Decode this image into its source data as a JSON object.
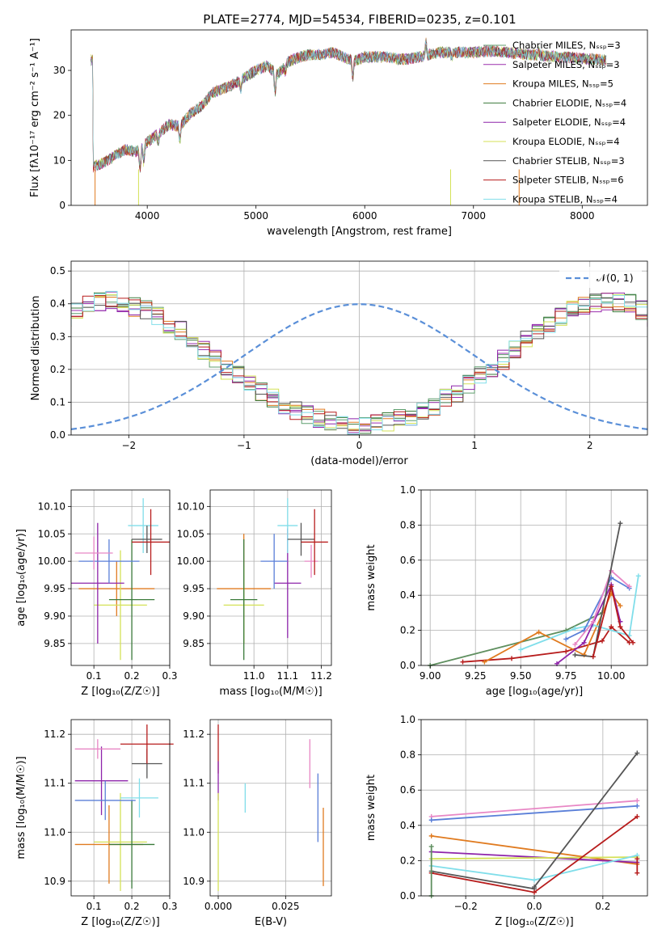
{
  "figure_title": "PLATE=2774, MJD=54534, FIBERID=0235, z=0.101",
  "series_colors": [
    "#5f9e6e",
    "#9b2fae",
    "#e07b20",
    "#3a7a3a",
    "#8e24aa",
    "#d4e157",
    "#555555",
    "#b71c1c",
    "#80deea"
  ],
  "chart_data": [
    {
      "type": "line",
      "title": "PLATE=2774, MJD=54534, FIBERID=0235, z=0.101",
      "xlabel": "wavelength [Angstrom, rest frame]",
      "ylabel": "Flux [fλ10⁻¹⁷ erg cm⁻² s⁻¹ A⁻¹]",
      "xlim": [
        3300,
        8600
      ],
      "ylim": [
        0,
        39
      ],
      "xticks": [
        4000,
        5000,
        6000,
        7000,
        8000
      ],
      "yticks": [
        0,
        10,
        20,
        30
      ],
      "grid": false,
      "legend": "right",
      "series": [
        {
          "name": "Chabrier MILES, Nₛₛₚ=3",
          "color": "#5f9e6e"
        },
        {
          "name": "Salpeter MILES, Nₛₛₚ=3",
          "color": "#9b2fae"
        },
        {
          "name": "Kroupa MILES, Nₛₛₚ=5",
          "color": "#e07b20"
        },
        {
          "name": "Chabrier ELODIE, Nₛₛₚ=4",
          "color": "#3a7a3a"
        },
        {
          "name": "Salpeter ELODIE, Nₛₛₚ=4",
          "color": "#8e24aa"
        },
        {
          "name": "Kroupa ELODIE, Nₛₛₚ=4",
          "color": "#d4e157"
        },
        {
          "name": "Chabrier STELIB, Nₛₛₚ=3",
          "color": "#555555"
        },
        {
          "name": "Salpeter STELIB, Nₛₛₚ=6",
          "color": "#b71c1c"
        },
        {
          "name": "Kroupa STELIB, Nₛₛₚ=4",
          "color": "#80deea"
        }
      ],
      "continuum": [
        [
          3500,
          8.5
        ],
        [
          3600,
          9.5
        ],
        [
          3700,
          11
        ],
        [
          3800,
          12.5
        ],
        [
          3900,
          12
        ],
        [
          4000,
          14
        ],
        [
          4100,
          16
        ],
        [
          4200,
          18
        ],
        [
          4300,
          17.5
        ],
        [
          4400,
          20.5
        ],
        [
          4500,
          22
        ],
        [
          4600,
          25
        ],
        [
          4700,
          26
        ],
        [
          4800,
          27
        ],
        [
          4900,
          28.5
        ],
        [
          5000,
          30
        ],
        [
          5100,
          31
        ],
        [
          5200,
          29
        ],
        [
          5300,
          32
        ],
        [
          5400,
          33
        ],
        [
          5500,
          33.5
        ],
        [
          5600,
          33.5
        ],
        [
          5700,
          34
        ],
        [
          5800,
          33
        ],
        [
          5900,
          32
        ],
        [
          6000,
          33
        ],
        [
          6100,
          33
        ],
        [
          6200,
          33
        ],
        [
          6300,
          32.5
        ],
        [
          6400,
          32.5
        ],
        [
          6500,
          33
        ],
        [
          6600,
          33.5
        ],
        [
          6700,
          34
        ],
        [
          6800,
          34
        ],
        [
          6900,
          34
        ],
        [
          7000,
          34
        ],
        [
          7100,
          34.2
        ],
        [
          7200,
          34.3
        ],
        [
          7300,
          34
        ],
        [
          7400,
          33.8
        ],
        [
          7500,
          33.5
        ],
        [
          7600,
          33.4
        ],
        [
          7700,
          33.2
        ],
        [
          7800,
          33
        ],
        [
          7900,
          32.9
        ],
        [
          8000,
          32.6
        ],
        [
          8100,
          32.5
        ],
        [
          8200,
          32.3
        ]
      ]
    },
    {
      "type": "line",
      "xlabel": "(data-model)/error",
      "ylabel": "Normed distribution",
      "xlim": [
        -2.5,
        2.5
      ],
      "ylim": [
        0,
        0.53
      ],
      "xticks": [
        -2,
        -1,
        0,
        1,
        2
      ],
      "yticks": [
        0.0,
        0.1,
        0.2,
        0.3,
        0.4,
        0.5
      ],
      "grid": true,
      "legend": "top-right",
      "reference": {
        "name": "𝒩(0, 1)",
        "mean": 0,
        "sigma": 1,
        "color": "#5a8fd8"
      },
      "bin_width": 0.1,
      "histogram_envelope": [
        0.03,
        0.035,
        0.04,
        0.05,
        0.06,
        0.075,
        0.09,
        0.11,
        0.13,
        0.155,
        0.18,
        0.2,
        0.23,
        0.26,
        0.29,
        0.32,
        0.34,
        0.36,
        0.38,
        0.39,
        0.4,
        0.41,
        0.405,
        0.4,
        0.38,
        0.36,
        0.34,
        0.31,
        0.28,
        0.25,
        0.22,
        0.19,
        0.165,
        0.14,
        0.12,
        0.1,
        0.08,
        0.065,
        0.05,
        0.04,
        0.03,
        0.025,
        0.02,
        0.018,
        0.015,
        0.012,
        0.01,
        0.01,
        0.009,
        0.008
      ]
    },
    {
      "type": "scatter",
      "xlabel": "Z [log₁₀(Z/Z☉)]",
      "ylabel": "age  [log₁₀(age/yr)]",
      "xlim": [
        0.04,
        0.3
      ],
      "ylim": [
        9.81,
        10.13
      ],
      "xticks": [
        0.1,
        0.2,
        0.3
      ],
      "yticks": [
        9.85,
        9.9,
        9.95,
        10.0,
        10.05,
        10.1
      ],
      "grid": true,
      "points": [
        {
          "x": 0.16,
          "y": 9.95,
          "xerr": 0.1,
          "yerr": 0.05,
          "color": "#e07b20"
        },
        {
          "x": 0.17,
          "y": 9.92,
          "xerr": 0.07,
          "yerr": 0.1,
          "color": "#d4e157"
        },
        {
          "x": 0.2,
          "y": 9.93,
          "xerr": 0.06,
          "yerr": 0.11,
          "color": "#3a7a3a"
        },
        {
          "x": 0.11,
          "y": 9.96,
          "xerr": 0.07,
          "yerr": 0.11,
          "color": "#8e24aa"
        },
        {
          "x": 0.14,
          "y": 10.0,
          "xerr": 0.08,
          "yerr": 0.04,
          "color": "#5a7fd8"
        },
        {
          "x": 0.1,
          "y": 10.015,
          "xerr": 0.05,
          "yerr": 0.03,
          "color": "#e887c5"
        },
        {
          "x": 0.23,
          "y": 10.065,
          "xerr": 0.04,
          "yerr": 0.05,
          "color": "#80deea"
        },
        {
          "x": 0.24,
          "y": 10.04,
          "xerr": 0.04,
          "yerr": 0.025,
          "color": "#555555"
        },
        {
          "x": 0.25,
          "y": 10.035,
          "xerr": 0.05,
          "yerr": 0.06,
          "color": "#b71c1c"
        }
      ]
    },
    {
      "type": "scatter",
      "xlabel": "mass [log₁₀(M/M☉)]",
      "ylabel": "",
      "xlim": [
        10.87,
        11.23
      ],
      "ylim": [
        9.81,
        10.13
      ],
      "xticks": [
        11.0,
        11.1,
        11.2
      ],
      "yticks": [
        9.85,
        9.9,
        9.95,
        10.0,
        10.05,
        10.1
      ],
      "grid": true,
      "points": [
        {
          "x": 10.97,
          "y": 9.95,
          "xerr": 0.08,
          "yerr": 0.1,
          "color": "#e07b20"
        },
        {
          "x": 10.97,
          "y": 9.92,
          "xerr": 0.06,
          "yerr": 0.07,
          "color": "#d4e157"
        },
        {
          "x": 10.97,
          "y": 9.93,
          "xerr": 0.04,
          "yerr": 0.11,
          "color": "#3a7a3a"
        },
        {
          "x": 11.1,
          "y": 9.96,
          "xerr": 0.04,
          "yerr": 0.1,
          "color": "#8e24aa"
        },
        {
          "x": 11.06,
          "y": 10.0,
          "xerr": 0.04,
          "yerr": 0.05,
          "color": "#5a7fd8"
        },
        {
          "x": 11.17,
          "y": 10.0,
          "xerr": 0.02,
          "yerr": 0.03,
          "color": "#e887c5"
        },
        {
          "x": 11.1,
          "y": 10.065,
          "xerr": 0.03,
          "yerr": 0.05,
          "color": "#80deea"
        },
        {
          "x": 11.14,
          "y": 10.04,
          "xerr": 0.04,
          "yerr": 0.03,
          "color": "#555555"
        },
        {
          "x": 11.18,
          "y": 10.035,
          "xerr": 0.04,
          "yerr": 0.06,
          "color": "#b71c1c"
        }
      ]
    },
    {
      "type": "line",
      "xlabel": "age  [log₁₀(age/yr)]",
      "ylabel": "mass weight",
      "xlim": [
        8.95,
        10.2
      ],
      "ylim": [
        0,
        1.0
      ],
      "xticks": [
        9.0,
        9.25,
        9.5,
        9.75,
        10.0
      ],
      "yticks": [
        0.0,
        0.2,
        0.4,
        0.6,
        0.8,
        1.0
      ],
      "grid": true,
      "series": [
        {
          "color": "#5f8f5f",
          "x": [
            9.0,
            9.75,
            9.95
          ],
          "y": [
            0.0,
            0.2,
            0.3
          ]
        },
        {
          "color": "#b71c1c",
          "x": [
            9.18,
            9.45,
            9.75,
            9.95,
            10.0,
            10.1
          ],
          "y": [
            0.02,
            0.04,
            0.08,
            0.14,
            0.22,
            0.13
          ]
        },
        {
          "color": "#e07b20",
          "x": [
            9.3,
            9.6,
            9.85,
            10.0,
            10.05
          ],
          "y": [
            0.02,
            0.19,
            0.06,
            0.41,
            0.34
          ]
        },
        {
          "color": "#80deea",
          "x": [
            9.5,
            9.8,
            9.9,
            10.1,
            10.15
          ],
          "y": [
            0.09,
            0.21,
            0.23,
            0.17,
            0.51
          ]
        },
        {
          "color": "#8e24aa",
          "x": [
            9.7,
            9.85,
            10.0,
            10.05
          ],
          "y": [
            0.01,
            0.13,
            0.46,
            0.25
          ]
        },
        {
          "color": "#5a7fd8",
          "x": [
            9.75,
            9.85,
            10.0,
            10.1
          ],
          "y": [
            0.15,
            0.2,
            0.5,
            0.44
          ]
        },
        {
          "color": "#e887c5",
          "x": [
            9.8,
            9.9,
            10.0,
            10.1
          ],
          "y": [
            0.12,
            0.25,
            0.54,
            0.45
          ]
        },
        {
          "color": "#555555",
          "x": [
            9.8,
            9.9,
            10.05
          ],
          "y": [
            0.06,
            0.05,
            0.81
          ]
        },
        {
          "color": "#b71c1c",
          "x": [
            9.9,
            10.0,
            10.05,
            10.12
          ],
          "y": [
            0.05,
            0.45,
            0.22,
            0.13
          ]
        }
      ]
    },
    {
      "type": "scatter",
      "xlabel": "Z [log₁₀(Z/Z☉)]",
      "ylabel": "mass [log₁₀(M/M☉)]",
      "xlim": [
        0.04,
        0.3
      ],
      "ylim": [
        10.87,
        11.23
      ],
      "xticks": [
        0.1,
        0.2,
        0.3
      ],
      "yticks": [
        10.9,
        11.0,
        11.1,
        11.2
      ],
      "grid": true,
      "points": [
        {
          "x": 0.14,
          "y": 10.975,
          "xerr": 0.09,
          "yerr": 0.08,
          "color": "#e07b20"
        },
        {
          "x": 0.17,
          "y": 10.98,
          "xerr": 0.07,
          "yerr": 0.1,
          "color": "#d4e157"
        },
        {
          "x": 0.2,
          "y": 10.975,
          "xerr": 0.06,
          "yerr": 0.09,
          "color": "#3a7a3a"
        },
        {
          "x": 0.12,
          "y": 11.105,
          "xerr": 0.07,
          "yerr": 0.07,
          "color": "#8e24aa"
        },
        {
          "x": 0.13,
          "y": 11.065,
          "xerr": 0.08,
          "yerr": 0.04,
          "color": "#5a7fd8"
        },
        {
          "x": 0.11,
          "y": 11.17,
          "xerr": 0.06,
          "yerr": 0.02,
          "color": "#e887c5"
        },
        {
          "x": 0.22,
          "y": 11.07,
          "xerr": 0.05,
          "yerr": 0.04,
          "color": "#80deea"
        },
        {
          "x": 0.24,
          "y": 11.14,
          "xerr": 0.04,
          "yerr": 0.03,
          "color": "#555555"
        },
        {
          "x": 0.24,
          "y": 11.18,
          "xerr": 0.07,
          "yerr": 0.04,
          "color": "#b71c1c"
        }
      ]
    },
    {
      "type": "scatter",
      "xlabel": "E(B-V)",
      "ylabel": "",
      "xlim": [
        -0.003,
        0.042
      ],
      "ylim": [
        10.87,
        11.23
      ],
      "xticks": [
        0.0,
        0.025
      ],
      "yticks": [
        10.9,
        11.0,
        11.1,
        11.2
      ],
      "grid": true,
      "points": [
        {
          "x": 0.0,
          "y": 11.17,
          "yerr": 0.05,
          "color": "#b71c1c"
        },
        {
          "x": 0.0,
          "y": 11.105,
          "yerr": 0.04,
          "color": "#8e24aa"
        },
        {
          "x": 0.0,
          "y": 10.98,
          "yerr": 0.1,
          "color": "#d4e157"
        },
        {
          "x": 0.01,
          "y": 11.07,
          "yerr": 0.03,
          "color": "#80deea"
        },
        {
          "x": 0.034,
          "y": 11.14,
          "yerr": 0.05,
          "color": "#e887c5"
        },
        {
          "x": 0.037,
          "y": 11.05,
          "yerr": 0.07,
          "color": "#5a7fd8"
        },
        {
          "x": 0.039,
          "y": 10.97,
          "yerr": 0.08,
          "color": "#e07b20"
        }
      ]
    },
    {
      "type": "line",
      "xlabel": "Z [log₁₀(Z/Z☉)]",
      "ylabel": "mass weight",
      "xlim": [
        -0.33,
        0.33
      ],
      "ylim": [
        0,
        1.0
      ],
      "xticks": [
        -0.2,
        0.0,
        0.2
      ],
      "yticks": [
        0.0,
        0.2,
        0.4,
        0.6,
        0.8,
        1.0
      ],
      "grid": true,
      "series": [
        {
          "color": "#e887c5",
          "x": [
            -0.3,
            0.3
          ],
          "y": [
            0.45,
            0.54
          ]
        },
        {
          "color": "#5a7fd8",
          "x": [
            -0.3,
            0.3
          ],
          "y": [
            0.43,
            0.51
          ]
        },
        {
          "color": "#e07b20",
          "x": [
            -0.3,
            0.3
          ],
          "y": [
            0.34,
            0.18
          ]
        },
        {
          "color": "#8e24aa",
          "x": [
            -0.3,
            0.3
          ],
          "y": [
            0.25,
            0.19
          ]
        },
        {
          "color": "#d4e157",
          "x": [
            -0.3,
            0.3
          ],
          "y": [
            0.21,
            0.22
          ]
        },
        {
          "color": "#80deea",
          "x": [
            -0.3,
            0.0,
            0.3
          ],
          "y": [
            0.17,
            0.09,
            0.23
          ]
        },
        {
          "color": "#555555",
          "x": [
            -0.3,
            0.0
          ],
          "y": [
            0.14,
            0.04
          ]
        },
        {
          "color": "#b71c1c",
          "x": [
            -0.3,
            0.0,
            0.3
          ],
          "y": [
            0.13,
            0.02,
            0.45
          ]
        },
        {
          "color": "#555555",
          "x": [
            0.0,
            0.3
          ],
          "y": [
            0.05,
            0.81
          ]
        },
        {
          "color": "#5f8f5f",
          "x": [
            -0.3,
            -0.3
          ],
          "y": [
            0.0,
            0.28
          ]
        },
        {
          "color": "#b71c1c",
          "x": [
            0.3,
            0.3
          ],
          "y": [
            0.21,
            0.13
          ]
        }
      ]
    }
  ]
}
